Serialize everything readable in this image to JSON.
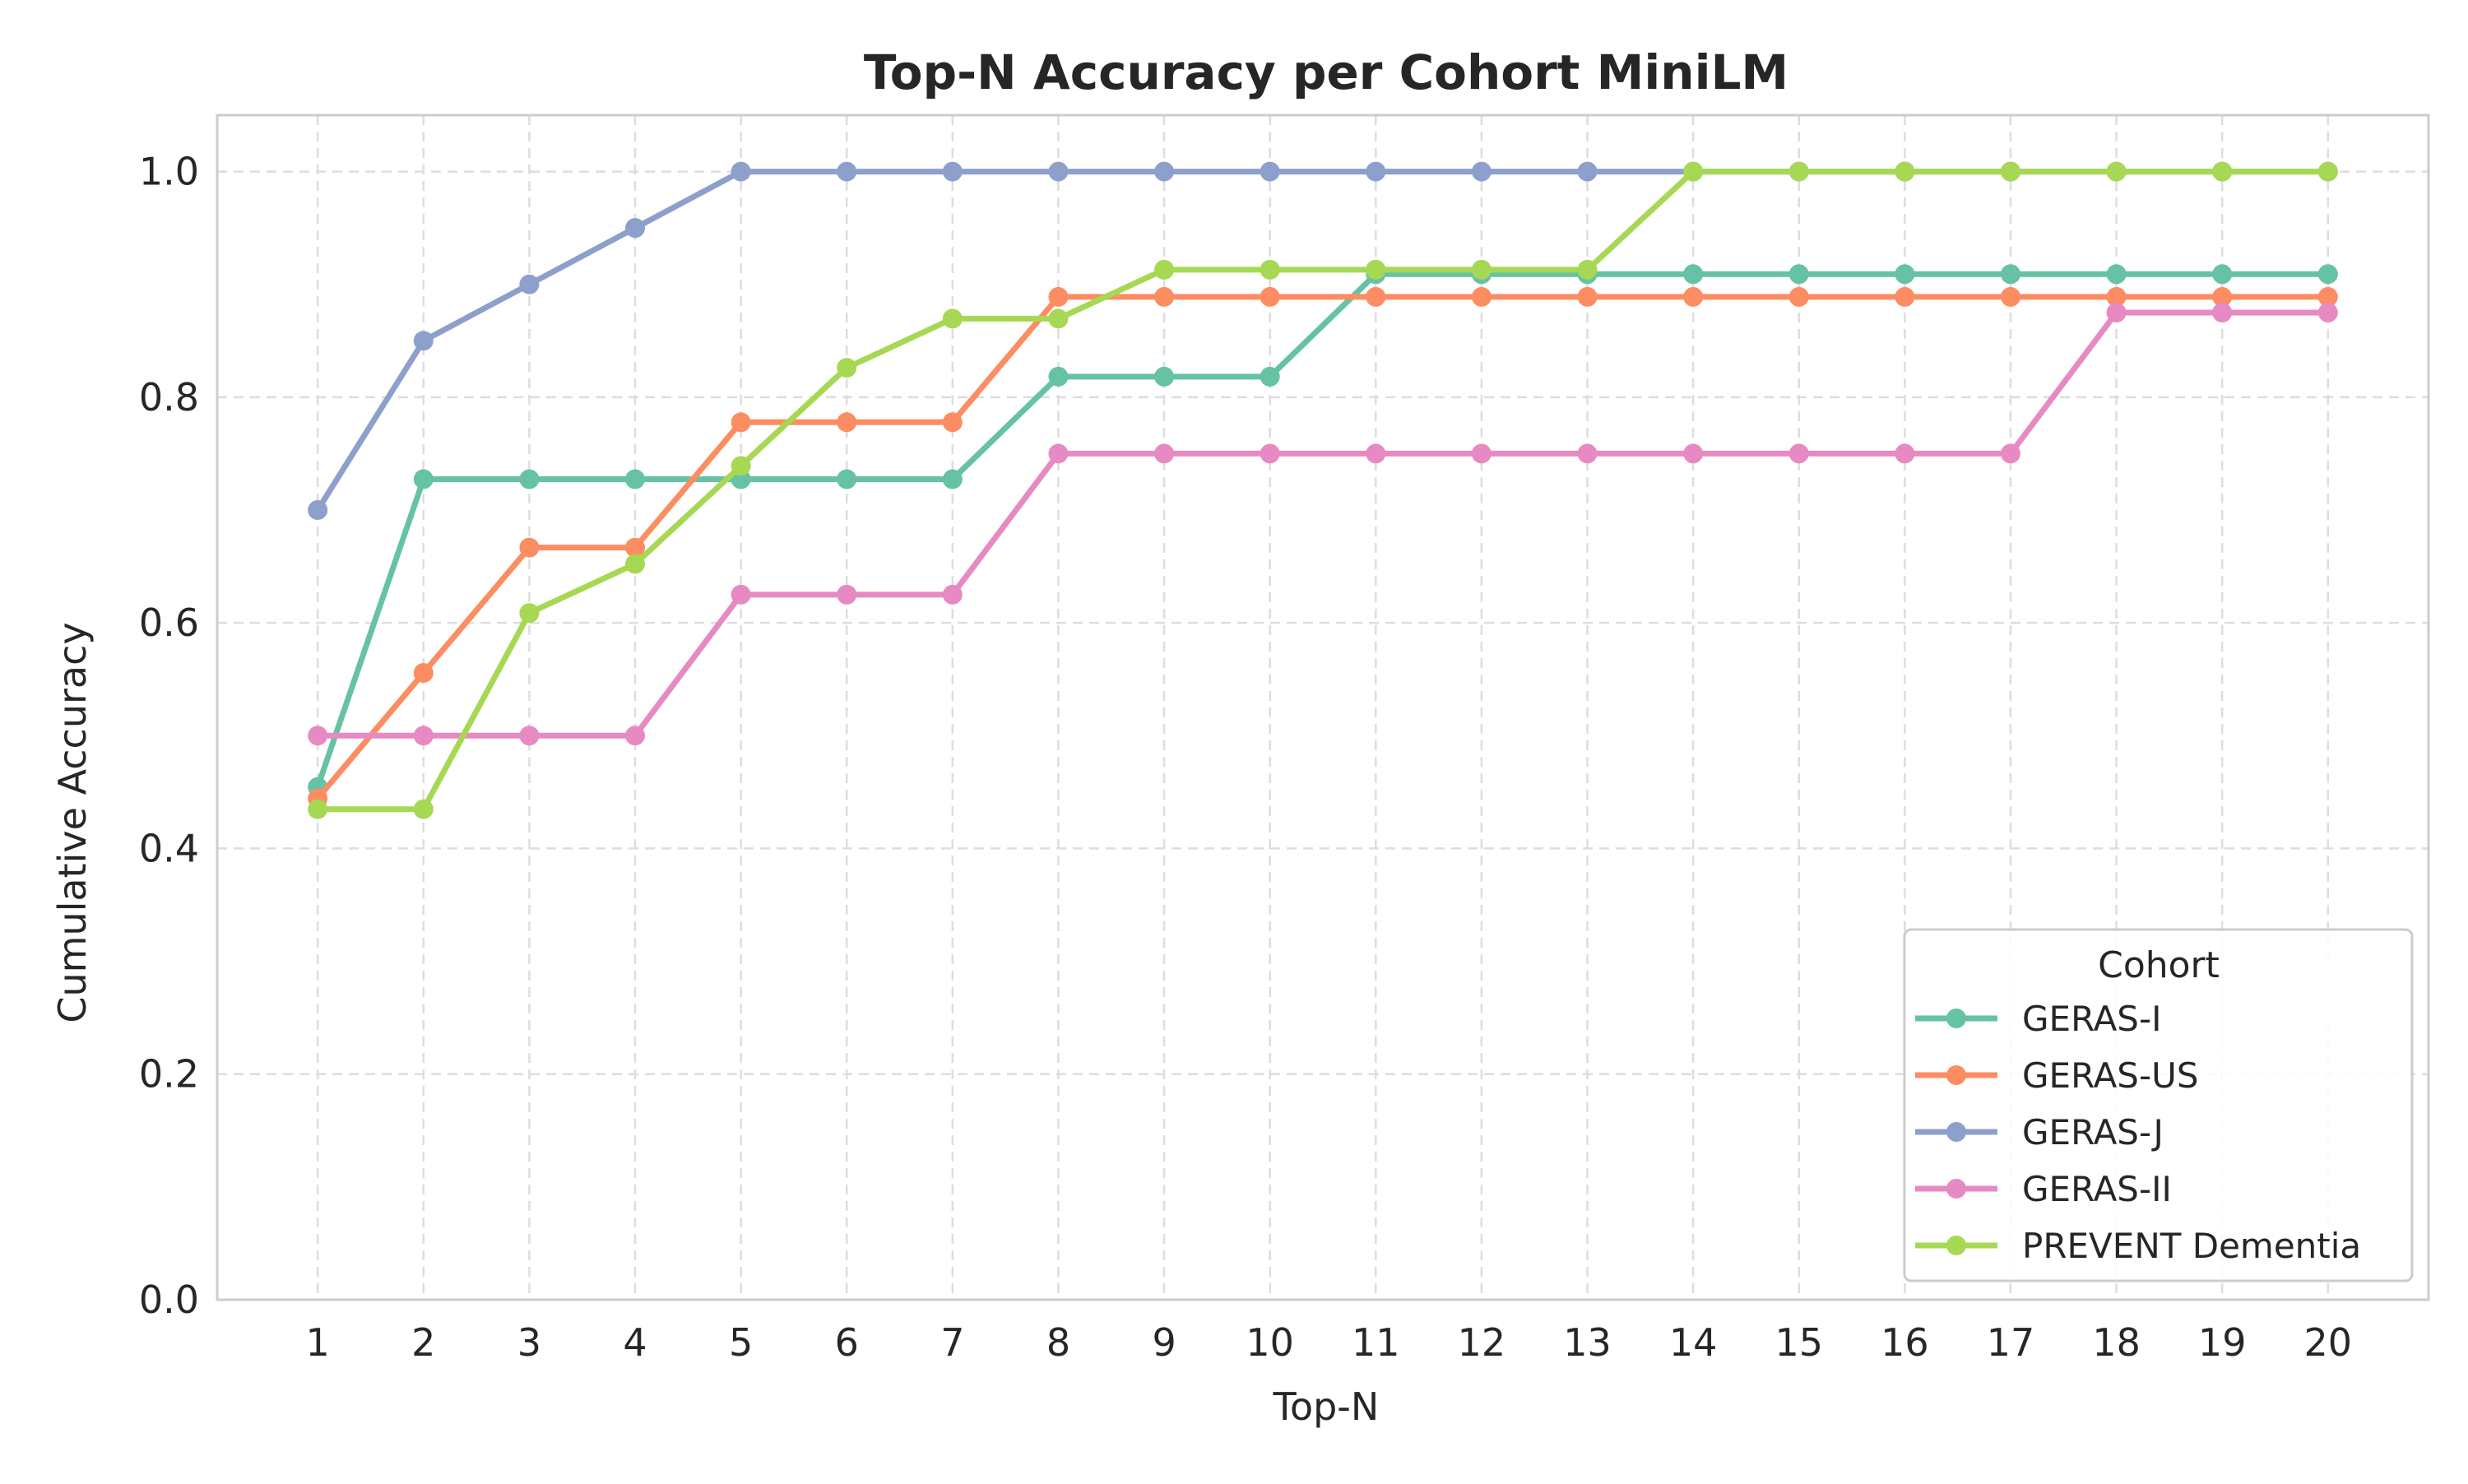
{
  "chart_data": {
    "type": "line",
    "title": "Top-N Accuracy per Cohort MiniLM",
    "xlabel": "Top-N",
    "ylabel": "Cumulative Accuracy",
    "x": [
      1,
      2,
      3,
      4,
      5,
      6,
      7,
      8,
      9,
      10,
      11,
      12,
      13,
      14,
      15,
      16,
      17,
      18,
      19,
      20
    ],
    "x_tick_labels": [
      "1",
      "2",
      "3",
      "4",
      "5",
      "6",
      "7",
      "8",
      "9",
      "10",
      "11",
      "12",
      "13",
      "14",
      "15",
      "16",
      "17",
      "18",
      "19",
      "20"
    ],
    "xlim": [
      0.05,
      20.95
    ],
    "ylim": [
      0.0,
      1.05
    ],
    "y_ticks": [
      0.0,
      0.2,
      0.4,
      0.6,
      0.8,
      1.0
    ],
    "y_tick_labels": [
      "0.0",
      "0.2",
      "0.4",
      "0.6",
      "0.8",
      "1.0"
    ],
    "grid": true,
    "grid_style": "dashed",
    "legend": {
      "title": "Cohort",
      "placement": "lower-right"
    },
    "series": [
      {
        "name": "GERAS-I",
        "color": "#66c2a5",
        "values": [
          0.4545,
          0.7273,
          0.7273,
          0.7273,
          0.7273,
          0.7273,
          0.7273,
          0.8182,
          0.8182,
          0.8182,
          0.9091,
          0.9091,
          0.9091,
          0.9091,
          0.9091,
          0.9091,
          0.9091,
          0.9091,
          0.9091,
          0.9091
        ]
      },
      {
        "name": "GERAS-US",
        "color": "#fc8d62",
        "values": [
          0.4444,
          0.5556,
          0.6667,
          0.6667,
          0.7778,
          0.7778,
          0.7778,
          0.8889,
          0.8889,
          0.8889,
          0.8889,
          0.8889,
          0.8889,
          0.8889,
          0.8889,
          0.8889,
          0.8889,
          0.8889,
          0.8889,
          0.8889
        ]
      },
      {
        "name": "GERAS-J",
        "color": "#8da0cb",
        "values": [
          0.7,
          0.85,
          0.9,
          0.95,
          1.0,
          1.0,
          1.0,
          1.0,
          1.0,
          1.0,
          1.0,
          1.0,
          1.0,
          1.0,
          1.0,
          1.0,
          1.0,
          1.0,
          1.0,
          1.0
        ]
      },
      {
        "name": "GERAS-II",
        "color": "#e78ac3",
        "values": [
          0.5,
          0.5,
          0.5,
          0.5,
          0.625,
          0.625,
          0.625,
          0.75,
          0.75,
          0.75,
          0.75,
          0.75,
          0.75,
          0.75,
          0.75,
          0.75,
          0.75,
          0.875,
          0.875,
          0.875
        ]
      },
      {
        "name": "PREVENT Dementia",
        "color": "#a6d854",
        "values": [
          0.4348,
          0.4348,
          0.6087,
          0.6522,
          0.7391,
          0.8261,
          0.8696,
          0.8696,
          0.913,
          0.913,
          0.913,
          0.913,
          0.913,
          1.0,
          1.0,
          1.0,
          1.0,
          1.0,
          1.0,
          1.0
        ]
      }
    ]
  }
}
